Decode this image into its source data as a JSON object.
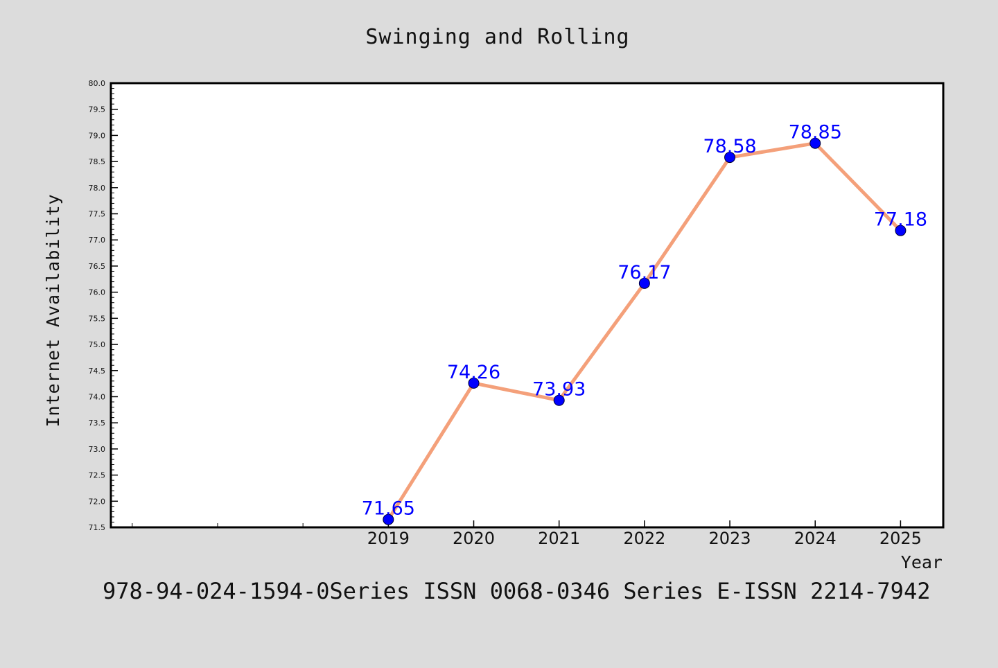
{
  "chart_data": {
    "type": "line",
    "title": "Swinging and Rolling",
    "xlabel": "Year",
    "ylabel": "Internet Availability",
    "footer": "978-94-024-1594-0Series ISSN 0068-0346 Series E-ISSN 2214-7942",
    "ylim": [
      71.5,
      80.0
    ],
    "xlim": [
      2015.75,
      2025.5
    ],
    "x_ticks": [
      "2019",
      "2020",
      "2021",
      "2022",
      "2023",
      "2024",
      "2025"
    ],
    "y_ticks": [
      "71.5",
      "72.0",
      "72.5",
      "73.0",
      "73.5",
      "74.0",
      "74.5",
      "75.0",
      "75.5",
      "76.0",
      "76.5",
      "77.0",
      "77.5",
      "78.0",
      "78.5",
      "79.0",
      "79.5",
      "80.0"
    ],
    "series": [
      {
        "x": [
          2019,
          2020,
          2021,
          2022,
          2023,
          2024,
          2025
        ],
        "values": [
          71.65,
          74.26,
          73.93,
          76.17,
          78.58,
          78.85,
          77.18
        ],
        "labels": [
          "71.65",
          "74.26",
          "73.93",
          "76.17",
          "78.58",
          "78.85",
          "77.18"
        ],
        "line_color": "#f4a07a",
        "marker_color": "#0000ff",
        "label_color": "#0000ff"
      }
    ],
    "grid": false,
    "legend": "none"
  }
}
